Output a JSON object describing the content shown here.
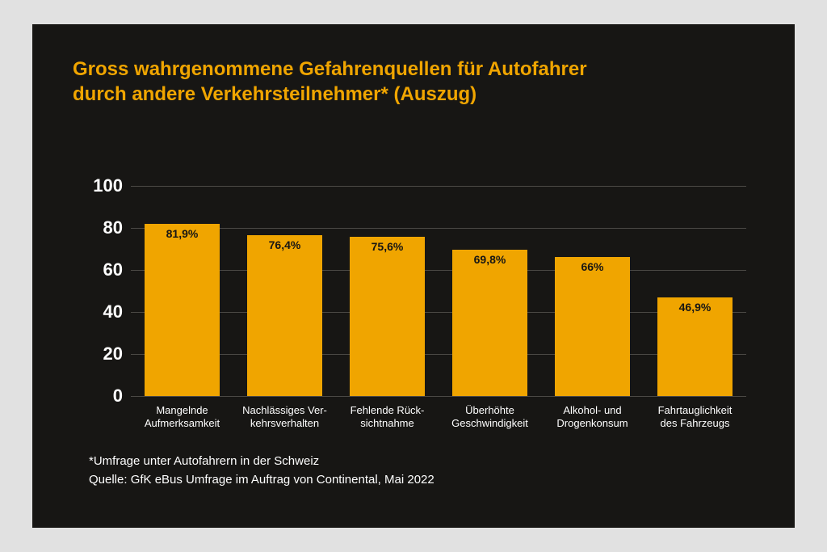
{
  "title": {
    "line1": "Gross wahrgenommene Gefahrenquellen für Autofahrer",
    "line2": "durch andere Verkehrsteilnehmer* (Auszug)",
    "color": "#f0a500",
    "fontsize": 24,
    "fontweight": 700
  },
  "chart": {
    "type": "bar",
    "background_color": "#171614",
    "grid_color": "#4b4945",
    "bar_color": "#f0a500",
    "bar_label_color": "#171614",
    "bar_width_pct": 74,
    "ylim": [
      0,
      100
    ],
    "ytick_step": 20,
    "yticks": [
      0,
      20,
      40,
      60,
      80,
      100
    ],
    "ytick_fontsize": 22,
    "ytick_fontweight": 700,
    "categories": [
      {
        "label_line1": "Mangelnde",
        "label_line2": "Aufmerksamkeit",
        "value": 81.9,
        "value_label": "81,9%"
      },
      {
        "label_line1": "Nachlässiges Ver-",
        "label_line2": "kehrsverhalten",
        "value": 76.4,
        "value_label": "76,4%"
      },
      {
        "label_line1": "Fehlende Rück-",
        "label_line2": "sichtnahme",
        "value": 75.6,
        "value_label": "75,6%"
      },
      {
        "label_line1": "Überhöhte",
        "label_line2": "Geschwindigkeit",
        "value": 69.8,
        "value_label": "69,8%"
      },
      {
        "label_line1": "Alkohol- und",
        "label_line2": "Drogenkonsum",
        "value": 66,
        "value_label": "66%"
      },
      {
        "label_line1": "Fahrtauglichkeit",
        "label_line2": "des Fahrzeugs",
        "value": 46.9,
        "value_label": "46,9%"
      }
    ],
    "xlabel_fontsize": 13,
    "value_label_fontsize": 14
  },
  "footnotes": {
    "line1": "*Umfrage unter Autofahrern in der Schweiz",
    "line2": " Quelle: GfK eBus Umfrage im Auftrag von Continental, Mai 2022",
    "fontsize": 15,
    "color": "#ffffff"
  },
  "page": {
    "outer_bg": "#e1e1e1",
    "panel_bg": "#171614",
    "text_color": "#ffffff"
  }
}
